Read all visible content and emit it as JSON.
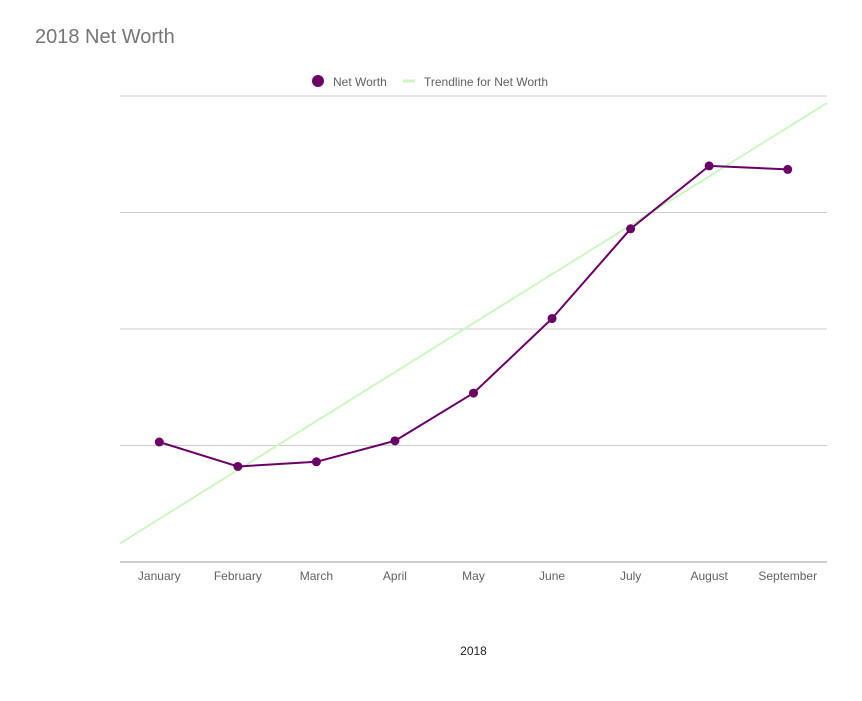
{
  "chart_data": {
    "type": "line",
    "title": "2018 Net Worth",
    "xlabel": "2018",
    "ylabel": "",
    "categories": [
      "January",
      "February",
      "March",
      "April",
      "May",
      "June",
      "July",
      "August",
      "September"
    ],
    "series": [
      {
        "name": "Net Worth",
        "color": "#6a0066",
        "values": [
          1.03,
          0.82,
          0.86,
          1.04,
          1.45,
          2.09,
          2.86,
          3.4,
          3.37
        ]
      },
      {
        "name": "Trendline for Net Worth",
        "color": "#ccf7c3",
        "trendline_of": "Net Worth",
        "values": [
          0.37,
          0.79,
          1.21,
          1.63,
          2.05,
          2.47,
          2.89,
          3.31,
          3.73
        ]
      }
    ],
    "ylim": [
      0,
      4
    ],
    "yticks": [
      0,
      1,
      2,
      3,
      4
    ],
    "ytick_labels_visible": false,
    "grid": true,
    "legend": "top-center"
  }
}
